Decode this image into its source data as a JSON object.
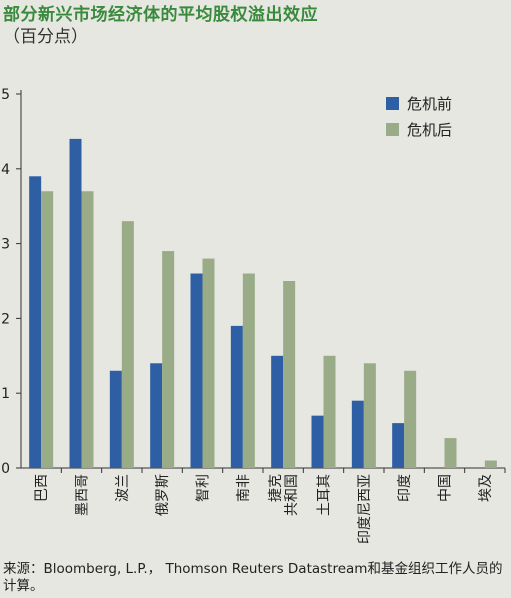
{
  "chart_data": {
    "type": "bar",
    "title": "部分新兴市场经济体的平均股权溢出效应",
    "subtitle": "（百分点）",
    "categories": [
      "巴西",
      "墨西哥",
      "波兰",
      "俄罗斯",
      "智利",
      "南非",
      "捷克\n共和国",
      "土耳其",
      "印度尼西亚",
      "印度",
      "中国",
      "埃及"
    ],
    "series": [
      {
        "name": "危机前",
        "color": "#2e5fa5",
        "values": [
          3.9,
          4.4,
          1.3,
          1.4,
          2.6,
          1.9,
          1.5,
          0.7,
          0.9,
          0.6,
          null,
          null
        ]
      },
      {
        "name": "危机后",
        "color": "#9aab88",
        "values": [
          3.7,
          3.7,
          3.3,
          2.9,
          2.8,
          2.6,
          2.5,
          1.5,
          1.4,
          1.3,
          0.4,
          0.1
        ]
      }
    ],
    "ylim": [
      0,
      5
    ],
    "yticks": [
      0,
      1,
      2,
      3,
      4,
      5
    ],
    "legend_position": "top-right",
    "grid": false,
    "source": "来源：Bloomberg, L.P.， Thomson Reuters Datastream和基金组织工作人员的计算。"
  }
}
